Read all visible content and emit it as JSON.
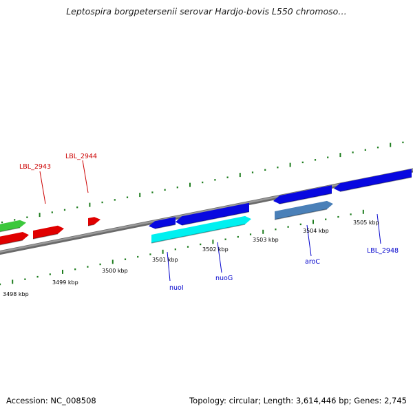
{
  "title": "Leptospira borgpetersenii serovar Hardjo-bovis L550 chromoso…",
  "footer": {
    "accession_label": "Accession: NC_008508",
    "summary": "Topology: circular; Length: 3,614,446 bp; Genes: 2,745"
  },
  "colors": {
    "backbone": "#808080",
    "tick": "#1e7d1e",
    "red_gene": "#e00000",
    "green_gene": "#3cc83c",
    "blue_gene": "#0808e0",
    "cyan_gene": "#00f0f0",
    "steel_gene": "#4a80b8",
    "red_label": "#cc0000",
    "blue_label": "#0000cc"
  },
  "scale_labels": [
    {
      "kbp": 3498,
      "text": "3498 kbp"
    },
    {
      "kbp": 3499,
      "text": "3499 kbp"
    },
    {
      "kbp": 3500,
      "text": "3500 kbp"
    },
    {
      "kbp": 3501,
      "text": "3501 kbp"
    },
    {
      "kbp": 3502,
      "text": "3502 kbp"
    },
    {
      "kbp": 3503,
      "text": "3503 kbp"
    },
    {
      "kbp": 3504,
      "text": "3504 kbp"
    },
    {
      "kbp": 3505,
      "text": "3505 kbp"
    }
  ],
  "gene_labels": [
    {
      "id": "lbl-2943",
      "text": "LBL_2943",
      "color": "red"
    },
    {
      "id": "lbl-2944",
      "text": "LBL_2944",
      "color": "red"
    },
    {
      "id": "nuoi",
      "text": "nuoI",
      "color": "blue"
    },
    {
      "id": "nuog",
      "text": "nuoG",
      "color": "blue"
    },
    {
      "id": "aroc",
      "text": "aroC",
      "color": "blue"
    },
    {
      "id": "lbl-2948",
      "text": "LBL_2948",
      "color": "blue"
    }
  ]
}
